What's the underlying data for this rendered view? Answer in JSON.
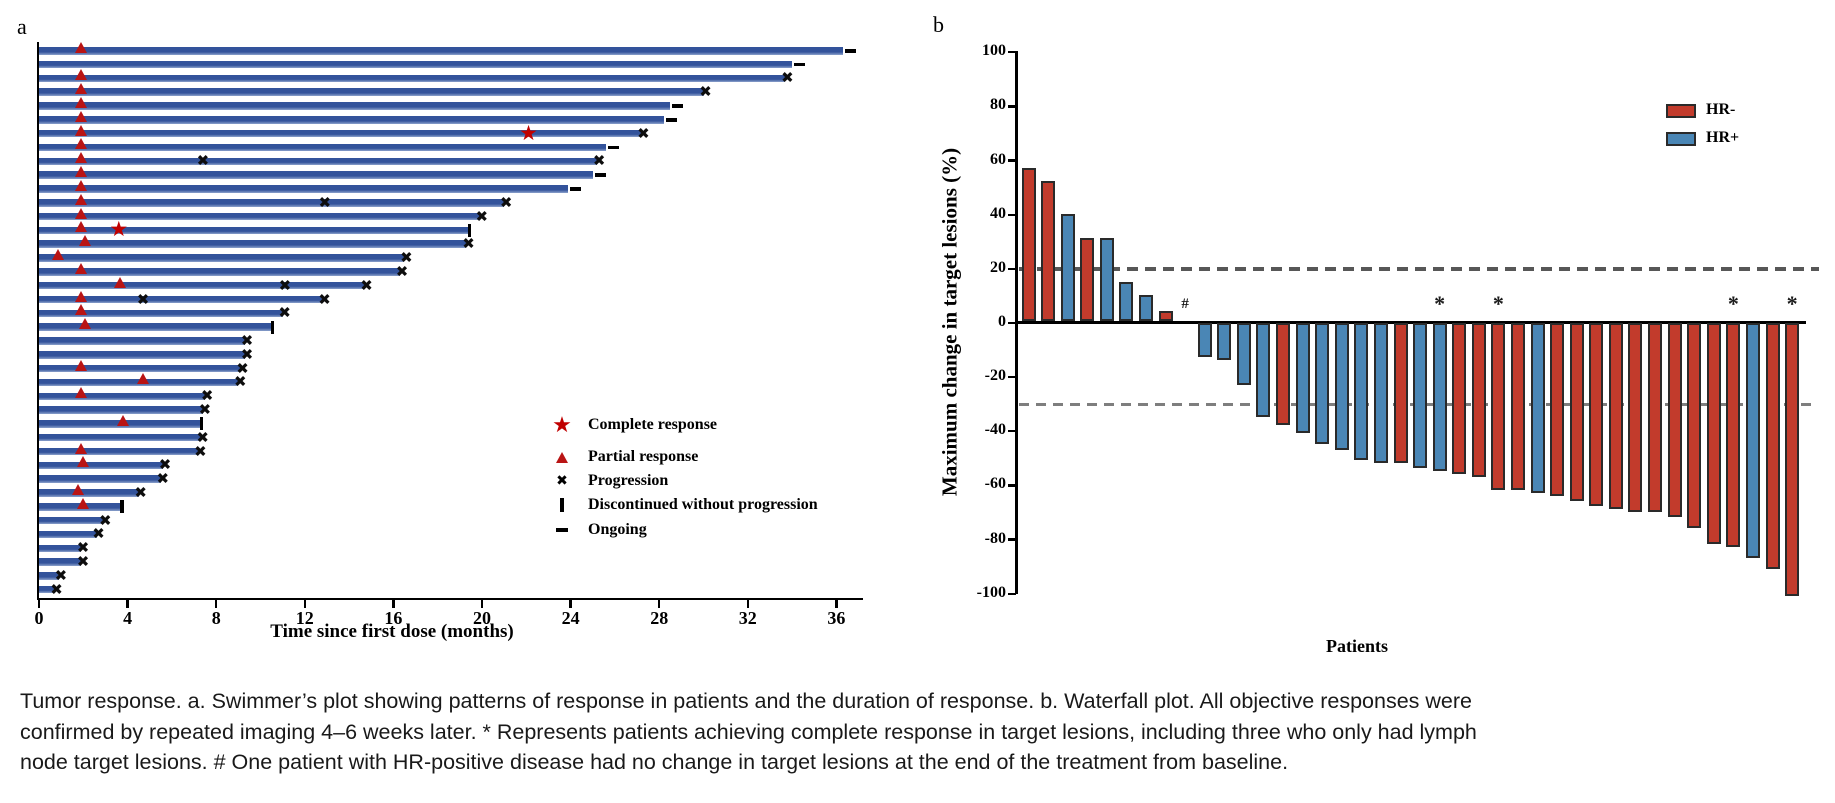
{
  "colors": {
    "swimmer_bar": "#33539B",
    "hr_neg": "#C23B2C",
    "hr_pos": "#4A86B5",
    "marker_red": "#B91414",
    "dash_upper": "#575757",
    "dash_lower": "#7E7E7E"
  },
  "panel_a_label": "a",
  "panel_b_label": "b",
  "caption": {
    "lines": [
      "Tumor response. a. Swimmer’s plot showing patterns of response in patients and the duration of response. b. Waterfall plot. All objective responses were",
      "confirmed by repeated imaging 4–6 weeks later. * Represents patients achieving complete response in target lesions, including three who only had lymph",
      "node target lesions. # One patient with HR-positive disease had no change in target lesions at the end of the treatment from baseline."
    ]
  },
  "chart_data": [
    {
      "type": "swimmer",
      "panel": "a",
      "xlabel": "Time since first dose (months)",
      "x_ticks": [
        0,
        4,
        8,
        12,
        16,
        20,
        24,
        28,
        32,
        36
      ],
      "xlim": [
        0,
        37.3
      ],
      "legend": [
        {
          "symbol": "star",
          "label": "Complete response"
        },
        {
          "symbol": "triangle",
          "label": "Partial response"
        },
        {
          "symbol": "x",
          "label": "Progression"
        },
        {
          "symbol": "vbar",
          "label": "Discontinued without progression"
        },
        {
          "symbol": "dash",
          "label": "Ongoing"
        }
      ],
      "patients": [
        {
          "duration": 36.3,
          "end": "ongoing",
          "events": [
            {
              "type": "partial_response",
              "month": 1.9
            }
          ]
        },
        {
          "duration": 34.0,
          "end": "ongoing",
          "events": []
        },
        {
          "duration": 33.7,
          "end": "progression",
          "events": [
            {
              "type": "partial_response",
              "month": 1.9
            }
          ]
        },
        {
          "duration": 30.0,
          "end": "progression",
          "events": [
            {
              "type": "partial_response",
              "month": 1.9
            }
          ]
        },
        {
          "duration": 28.5,
          "end": "ongoing",
          "events": [
            {
              "type": "partial_response",
              "month": 1.9
            }
          ]
        },
        {
          "duration": 28.2,
          "end": "ongoing",
          "events": [
            {
              "type": "partial_response",
              "month": 1.9
            }
          ]
        },
        {
          "duration": 27.2,
          "end": "progression",
          "events": [
            {
              "type": "partial_response",
              "month": 1.9
            },
            {
              "type": "complete_response",
              "month": 22.1
            }
          ]
        },
        {
          "duration": 25.6,
          "end": "ongoing",
          "events": [
            {
              "type": "partial_response",
              "month": 1.9
            }
          ]
        },
        {
          "duration": 25.2,
          "end": "progression",
          "events": [
            {
              "type": "partial_response",
              "month": 1.9
            },
            {
              "type": "progression",
              "month": 7.4
            }
          ]
        },
        {
          "duration": 25.0,
          "end": "ongoing",
          "events": [
            {
              "type": "partial_response",
              "month": 1.9
            }
          ]
        },
        {
          "duration": 23.9,
          "end": "ongoing",
          "events": [
            {
              "type": "partial_response",
              "month": 1.9
            }
          ]
        },
        {
          "duration": 21.0,
          "end": "progression",
          "events": [
            {
              "type": "partial_response",
              "month": 1.9
            },
            {
              "type": "progression",
              "month": 12.9
            }
          ]
        },
        {
          "duration": 19.9,
          "end": "progression",
          "events": [
            {
              "type": "partial_response",
              "month": 1.9
            }
          ]
        },
        {
          "duration": 19.4,
          "end": "discontinued",
          "events": [
            {
              "type": "partial_response",
              "month": 1.9
            },
            {
              "type": "complete_response",
              "month": 3.6
            }
          ]
        },
        {
          "duration": 19.3,
          "end": "progression",
          "events": [
            {
              "type": "partial_response",
              "month": 2.1
            }
          ]
        },
        {
          "duration": 16.5,
          "end": "progression",
          "events": [
            {
              "type": "partial_response",
              "month": 0.9
            }
          ]
        },
        {
          "duration": 16.3,
          "end": "progression",
          "events": [
            {
              "type": "partial_response",
              "month": 1.9
            }
          ]
        },
        {
          "duration": 14.7,
          "end": "progression",
          "events": [
            {
              "type": "partial_response",
              "month": 3.7
            },
            {
              "type": "progression",
              "month": 11.1
            }
          ]
        },
        {
          "duration": 12.8,
          "end": "progression",
          "events": [
            {
              "type": "partial_response",
              "month": 1.9
            },
            {
              "type": "progression",
              "month": 4.7
            }
          ]
        },
        {
          "duration": 11.0,
          "end": "progression",
          "events": [
            {
              "type": "partial_response",
              "month": 1.9
            }
          ]
        },
        {
          "duration": 10.5,
          "end": "discontinued",
          "events": [
            {
              "type": "partial_response",
              "month": 2.1
            }
          ]
        },
        {
          "duration": 9.3,
          "end": "progression",
          "events": []
        },
        {
          "duration": 9.3,
          "end": "progression",
          "events": []
        },
        {
          "duration": 9.1,
          "end": "progression",
          "events": [
            {
              "type": "partial_response",
              "month": 1.9
            }
          ]
        },
        {
          "duration": 9.0,
          "end": "progression",
          "events": [
            {
              "type": "partial_response",
              "month": 4.7
            }
          ]
        },
        {
          "duration": 7.5,
          "end": "progression",
          "events": [
            {
              "type": "partial_response",
              "month": 1.9
            }
          ]
        },
        {
          "duration": 7.4,
          "end": "progression",
          "events": []
        },
        {
          "duration": 7.3,
          "end": "discontinued",
          "events": [
            {
              "type": "partial_response",
              "month": 3.8
            }
          ]
        },
        {
          "duration": 7.3,
          "end": "progression",
          "events": []
        },
        {
          "duration": 7.2,
          "end": "progression",
          "events": [
            {
              "type": "partial_response",
              "month": 1.9
            }
          ]
        },
        {
          "duration": 5.6,
          "end": "progression",
          "events": [
            {
              "type": "partial_response",
              "month": 2.0
            }
          ]
        },
        {
          "duration": 5.5,
          "end": "progression",
          "events": []
        },
        {
          "duration": 4.5,
          "end": "progression",
          "events": [
            {
              "type": "partial_response",
              "month": 1.8
            }
          ]
        },
        {
          "duration": 3.7,
          "end": "discontinued",
          "events": [
            {
              "type": "partial_response",
              "month": 2.0
            }
          ]
        },
        {
          "duration": 2.9,
          "end": "progression",
          "events": []
        },
        {
          "duration": 2.6,
          "end": "progression",
          "events": []
        },
        {
          "duration": 1.9,
          "end": "progression",
          "events": []
        },
        {
          "duration": 1.9,
          "end": "progression",
          "events": []
        },
        {
          "duration": 0.9,
          "end": "progression",
          "events": []
        },
        {
          "duration": 0.7,
          "end": "progression",
          "events": []
        }
      ]
    },
    {
      "type": "waterfall",
      "panel": "b",
      "ylabel": "Maximum change in target lesions (%)",
      "xlabel": "Patients",
      "ylim": [
        -100,
        100
      ],
      "y_ticks": [
        100,
        80,
        60,
        40,
        20,
        0,
        -20,
        -40,
        -60,
        -80,
        -100
      ],
      "ref_lines": [
        20,
        -30
      ],
      "legend": [
        {
          "label": "HR-",
          "color_key": "hr_neg"
        },
        {
          "label": "HR+",
          "color_key": "hr_pos"
        }
      ],
      "bars": [
        {
          "value": 56,
          "group": "HR-"
        },
        {
          "value": 51,
          "group": "HR-"
        },
        {
          "value": 39,
          "group": "HR+"
        },
        {
          "value": 30,
          "group": "HR-"
        },
        {
          "value": 30,
          "group": "HR+"
        },
        {
          "value": 14,
          "group": "HR+"
        },
        {
          "value": 9,
          "group": "HR+"
        },
        {
          "value": 3,
          "group": "HR-"
        },
        {
          "value": 0,
          "group": "HR+",
          "annotation": "#"
        },
        {
          "value": -12,
          "group": "HR+"
        },
        {
          "value": -13,
          "group": "HR+"
        },
        {
          "value": -22,
          "group": "HR+"
        },
        {
          "value": -34,
          "group": "HR+"
        },
        {
          "value": -37,
          "group": "HR-"
        },
        {
          "value": -40,
          "group": "HR+"
        },
        {
          "value": -44,
          "group": "HR+"
        },
        {
          "value": -46,
          "group": "HR+"
        },
        {
          "value": -50,
          "group": "HR+"
        },
        {
          "value": -51,
          "group": "HR+"
        },
        {
          "value": -51,
          "group": "HR-"
        },
        {
          "value": -53,
          "group": "HR+"
        },
        {
          "value": -54,
          "group": "HR+",
          "annotation": "*"
        },
        {
          "value": -55,
          "group": "HR-"
        },
        {
          "value": -56,
          "group": "HR-"
        },
        {
          "value": -61,
          "group": "HR-",
          "annotation": "*"
        },
        {
          "value": -61,
          "group": "HR-"
        },
        {
          "value": -62,
          "group": "HR+"
        },
        {
          "value": -63,
          "group": "HR-"
        },
        {
          "value": -65,
          "group": "HR-"
        },
        {
          "value": -67,
          "group": "HR-"
        },
        {
          "value": -68,
          "group": "HR-"
        },
        {
          "value": -69,
          "group": "HR-"
        },
        {
          "value": -69,
          "group": "HR-"
        },
        {
          "value": -71,
          "group": "HR-"
        },
        {
          "value": -75,
          "group": "HR-"
        },
        {
          "value": -81,
          "group": "HR-"
        },
        {
          "value": -82,
          "group": "HR-",
          "annotation": "*"
        },
        {
          "value": -86,
          "group": "HR+"
        },
        {
          "value": -90,
          "group": "HR-"
        },
        {
          "value": -100,
          "group": "HR-",
          "annotation": "*"
        }
      ]
    }
  ]
}
